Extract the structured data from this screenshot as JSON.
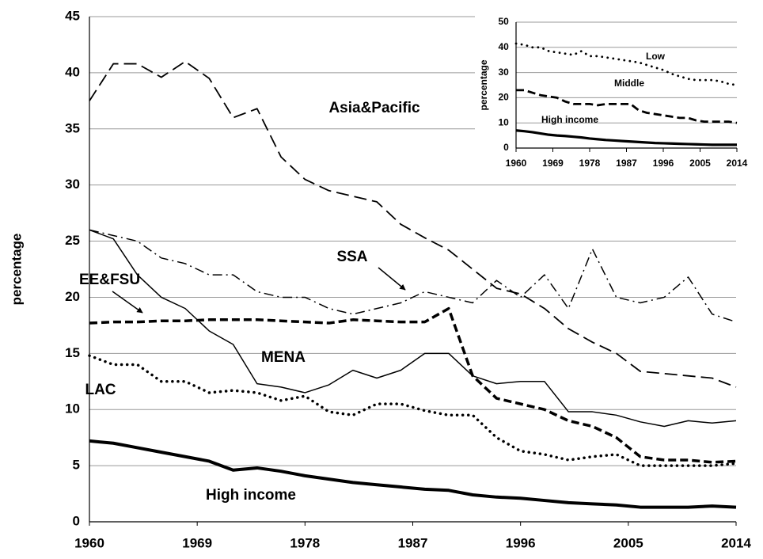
{
  "chart_data": [
    {
      "type": "line",
      "ylabel": "percentage",
      "grid": true,
      "x": [
        1960,
        1962,
        1964,
        1966,
        1968,
        1970,
        1972,
        1974,
        1976,
        1978,
        1980,
        1982,
        1984,
        1986,
        1988,
        1990,
        1992,
        1994,
        1996,
        1998,
        2000,
        2002,
        2004,
        2006,
        2008,
        2010,
        2012,
        2014
      ],
      "xlim": [
        1960,
        2014
      ],
      "xticks": [
        1960,
        1969,
        1978,
        1987,
        1996,
        2005,
        2014
      ],
      "ylim": [
        0,
        45
      ],
      "yticks": [
        0,
        5,
        10,
        15,
        20,
        25,
        30,
        35,
        40,
        45
      ],
      "series": [
        {
          "name": "Asia&Pacific",
          "color": "#000000",
          "line_style": "dashed",
          "values": [
            37.5,
            40.8,
            40.8,
            39.6,
            41.0,
            39.5,
            36.0,
            36.8,
            32.5,
            30.5,
            29.5,
            29.0,
            28.5,
            26.5,
            25.3,
            24.2,
            22.5,
            20.8,
            20.3,
            19.0,
            17.2,
            16.0,
            15.0,
            13.4,
            13.2,
            13.0,
            12.8,
            12.0
          ]
        },
        {
          "name": "SSA",
          "color": "#000000",
          "line_style": "dashdot",
          "values": [
            26.0,
            25.5,
            25.0,
            23.5,
            23.0,
            22.0,
            22.0,
            20.5,
            20.0,
            20.0,
            19.0,
            18.5,
            19.0,
            19.5,
            20.5,
            20.0,
            19.5,
            21.5,
            20.0,
            22.0,
            19.0,
            24.3,
            20.0,
            19.5,
            20.0,
            21.8,
            18.5,
            17.8
          ]
        },
        {
          "name": "EE&FSU",
          "color": "#000000",
          "line_style": "bold-dashed",
          "values": [
            17.7,
            17.8,
            17.8,
            17.9,
            17.9,
            18.0,
            18.0,
            18.0,
            17.9,
            17.8,
            17.7,
            18.0,
            17.9,
            17.8,
            17.8,
            19.0,
            13.0,
            11.0,
            10.5,
            10.0,
            9.0,
            8.5,
            7.5,
            5.8,
            5.5,
            5.5,
            5.3,
            5.4
          ]
        },
        {
          "name": "MENA",
          "color": "#000000",
          "line_style": "solid",
          "values": [
            26.0,
            25.2,
            22.0,
            20.0,
            19.0,
            17.0,
            15.8,
            12.3,
            12.0,
            11.5,
            12.2,
            13.5,
            12.8,
            13.5,
            15.0,
            15.0,
            13.0,
            12.3,
            12.5,
            12.5,
            9.8,
            9.8,
            9.5,
            8.9,
            8.5,
            9.0,
            8.8,
            9.0
          ]
        },
        {
          "name": "LAC",
          "color": "#000000",
          "line_style": "dotted",
          "values": [
            14.8,
            14.0,
            14.0,
            12.5,
            12.5,
            11.5,
            11.7,
            11.5,
            10.8,
            11.2,
            9.8,
            9.5,
            10.5,
            10.5,
            9.9,
            9.5,
            9.5,
            7.5,
            6.3,
            6.0,
            5.5,
            5.8,
            6.0,
            5.0,
            5.0,
            5.0,
            5.0,
            5.2
          ]
        },
        {
          "name": "High income",
          "color": "#000000",
          "line_style": "bold",
          "values": [
            7.2,
            7.0,
            6.6,
            6.2,
            5.8,
            5.4,
            4.6,
            4.8,
            4.5,
            4.1,
            3.8,
            3.5,
            3.3,
            3.1,
            2.9,
            2.8,
            2.4,
            2.2,
            2.1,
            1.9,
            1.7,
            1.6,
            1.5,
            1.3,
            1.3,
            1.3,
            1.4,
            1.3
          ]
        }
      ]
    },
    {
      "type": "line",
      "ylabel": "percentage",
      "grid": true,
      "x": [
        1960,
        1962,
        1964,
        1966,
        1968,
        1970,
        1972,
        1974,
        1976,
        1978,
        1980,
        1982,
        1984,
        1986,
        1988,
        1990,
        1992,
        1994,
        1996,
        1998,
        2000,
        2002,
        2004,
        2006,
        2008,
        2010,
        2012,
        2014
      ],
      "xlim": [
        1960,
        2014
      ],
      "xticks": [
        1960,
        1969,
        1978,
        1987,
        1996,
        2005,
        2014
      ],
      "ylim": [
        0,
        50
      ],
      "yticks": [
        0,
        10,
        20,
        30,
        40,
        50
      ],
      "series": [
        {
          "name": "Low",
          "color": "#000000",
          "line_style": "dotted",
          "values": [
            41.5,
            41,
            40,
            40,
            38.5,
            38,
            37.5,
            37,
            38.5,
            36.5,
            36.5,
            36,
            35.5,
            35,
            34.5,
            34,
            33,
            32,
            31,
            29.5,
            28.5,
            27.5,
            27,
            27,
            27,
            26.5,
            25.5,
            25
          ]
        },
        {
          "name": "Middle",
          "color": "#000000",
          "line_style": "bold-dashed",
          "values": [
            23,
            23,
            22,
            21,
            20.5,
            20,
            18.5,
            17.5,
            17.5,
            17.5,
            17,
            17.5,
            17.5,
            17.5,
            17.5,
            15,
            14,
            13.5,
            13,
            12.5,
            12,
            12,
            11,
            10.5,
            10.5,
            10.5,
            10.5,
            10
          ]
        },
        {
          "name": "High income",
          "color": "#000000",
          "line_style": "bold",
          "values": [
            7,
            6.7,
            6.3,
            5.8,
            5.3,
            5,
            4.8,
            4.5,
            4.2,
            3.8,
            3.5,
            3.2,
            3,
            2.8,
            2.6,
            2.4,
            2.2,
            2,
            1.9,
            1.8,
            1.7,
            1.6,
            1.5,
            1.4,
            1.3,
            1.3,
            1.3,
            1.3
          ]
        }
      ]
    }
  ]
}
